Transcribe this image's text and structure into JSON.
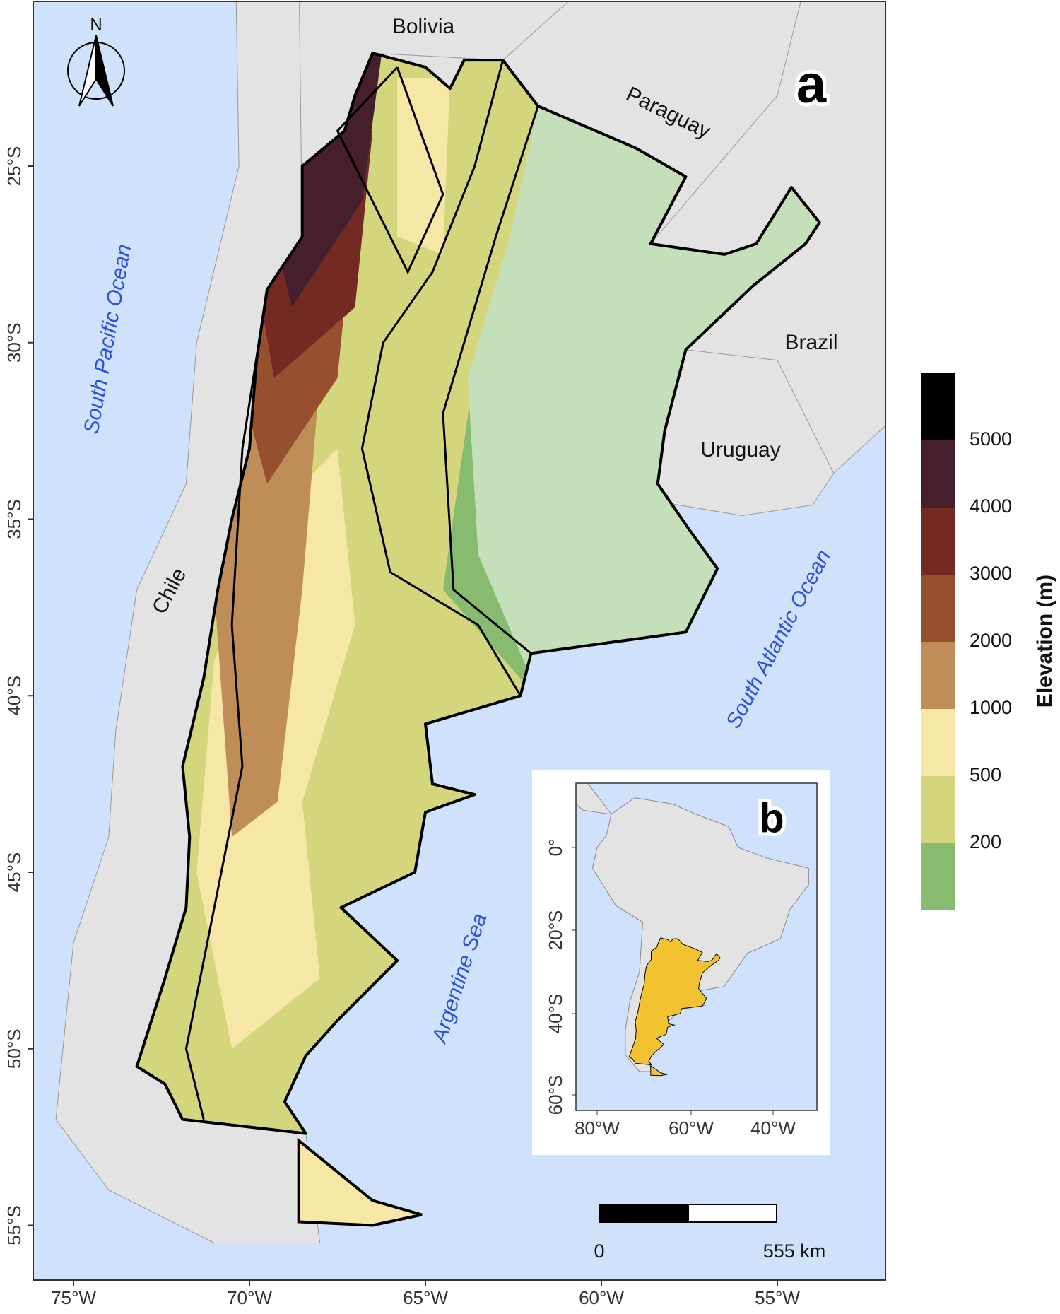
{
  "map": {
    "panel_label": "a",
    "north_label": "N",
    "countries": [
      "Bolivia",
      "Paraguay",
      "Brazil",
      "Uruguay",
      "Chile"
    ],
    "water_bodies": [
      "South Pacific Ocean",
      "South Atlantic Ocean",
      "Argentine Sea"
    ],
    "x_ticks": [
      "75°W",
      "70°W",
      "65°W",
      "60°W",
      "55°W"
    ],
    "y_ticks": [
      "25°S",
      "30°S",
      "35°S",
      "40°S",
      "45°S",
      "50°S",
      "55°S"
    ]
  },
  "legend": {
    "title": "Elevation (m)",
    "breaks": [
      5000,
      4000,
      3000,
      2000,
      1000,
      500,
      200
    ],
    "colors": [
      "#000000",
      "#45202c",
      "#722a22",
      "#96502f",
      "#bf8e58",
      "#f7e7a6",
      "#d4d67e",
      "#87bb6f"
    ]
  },
  "scale_bar": {
    "start": "0",
    "end": "555 km"
  },
  "inset": {
    "panel_label": "b",
    "highlight_color": "#f2c230",
    "x_ticks": [
      "80°W",
      "60°W",
      "40°W"
    ],
    "y_ticks": [
      "0°",
      "20°S",
      "40°S",
      "60°S"
    ]
  }
}
